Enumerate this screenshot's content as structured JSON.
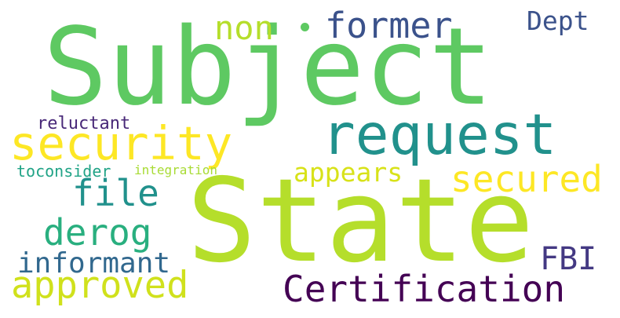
{
  "words": [
    {
      "text": "Subject",
      "color": "#5ec962"
    },
    {
      "text": "State",
      "color": "#b5de2b"
    },
    {
      "text": "request",
      "color": "#21918c"
    },
    {
      "text": "security",
      "color": "#fde725"
    },
    {
      "text": "former",
      "color": "#3b528b"
    },
    {
      "text": "non",
      "color": "#b5de2b"
    },
    {
      "text": "Dept",
      "color": "#3b528b"
    },
    {
      "text": "secured",
      "color": "#fde725"
    },
    {
      "text": "appears",
      "color": "#d8e219"
    },
    {
      "text": "file",
      "color": "#21918c"
    },
    {
      "text": "derog",
      "color": "#29af7f"
    },
    {
      "text": "informant",
      "color": "#31688e"
    },
    {
      "text": "approved",
      "color": "#d0e11c"
    },
    {
      "text": "Certification",
      "color": "#440154"
    },
    {
      "text": "FBI",
      "color": "#443983"
    },
    {
      "text": "reluctant",
      "color": "#482878"
    },
    {
      "text": "toconsider",
      "color": "#20a386"
    },
    {
      "text": "integration",
      "color": "#a8db34"
    }
  ]
}
